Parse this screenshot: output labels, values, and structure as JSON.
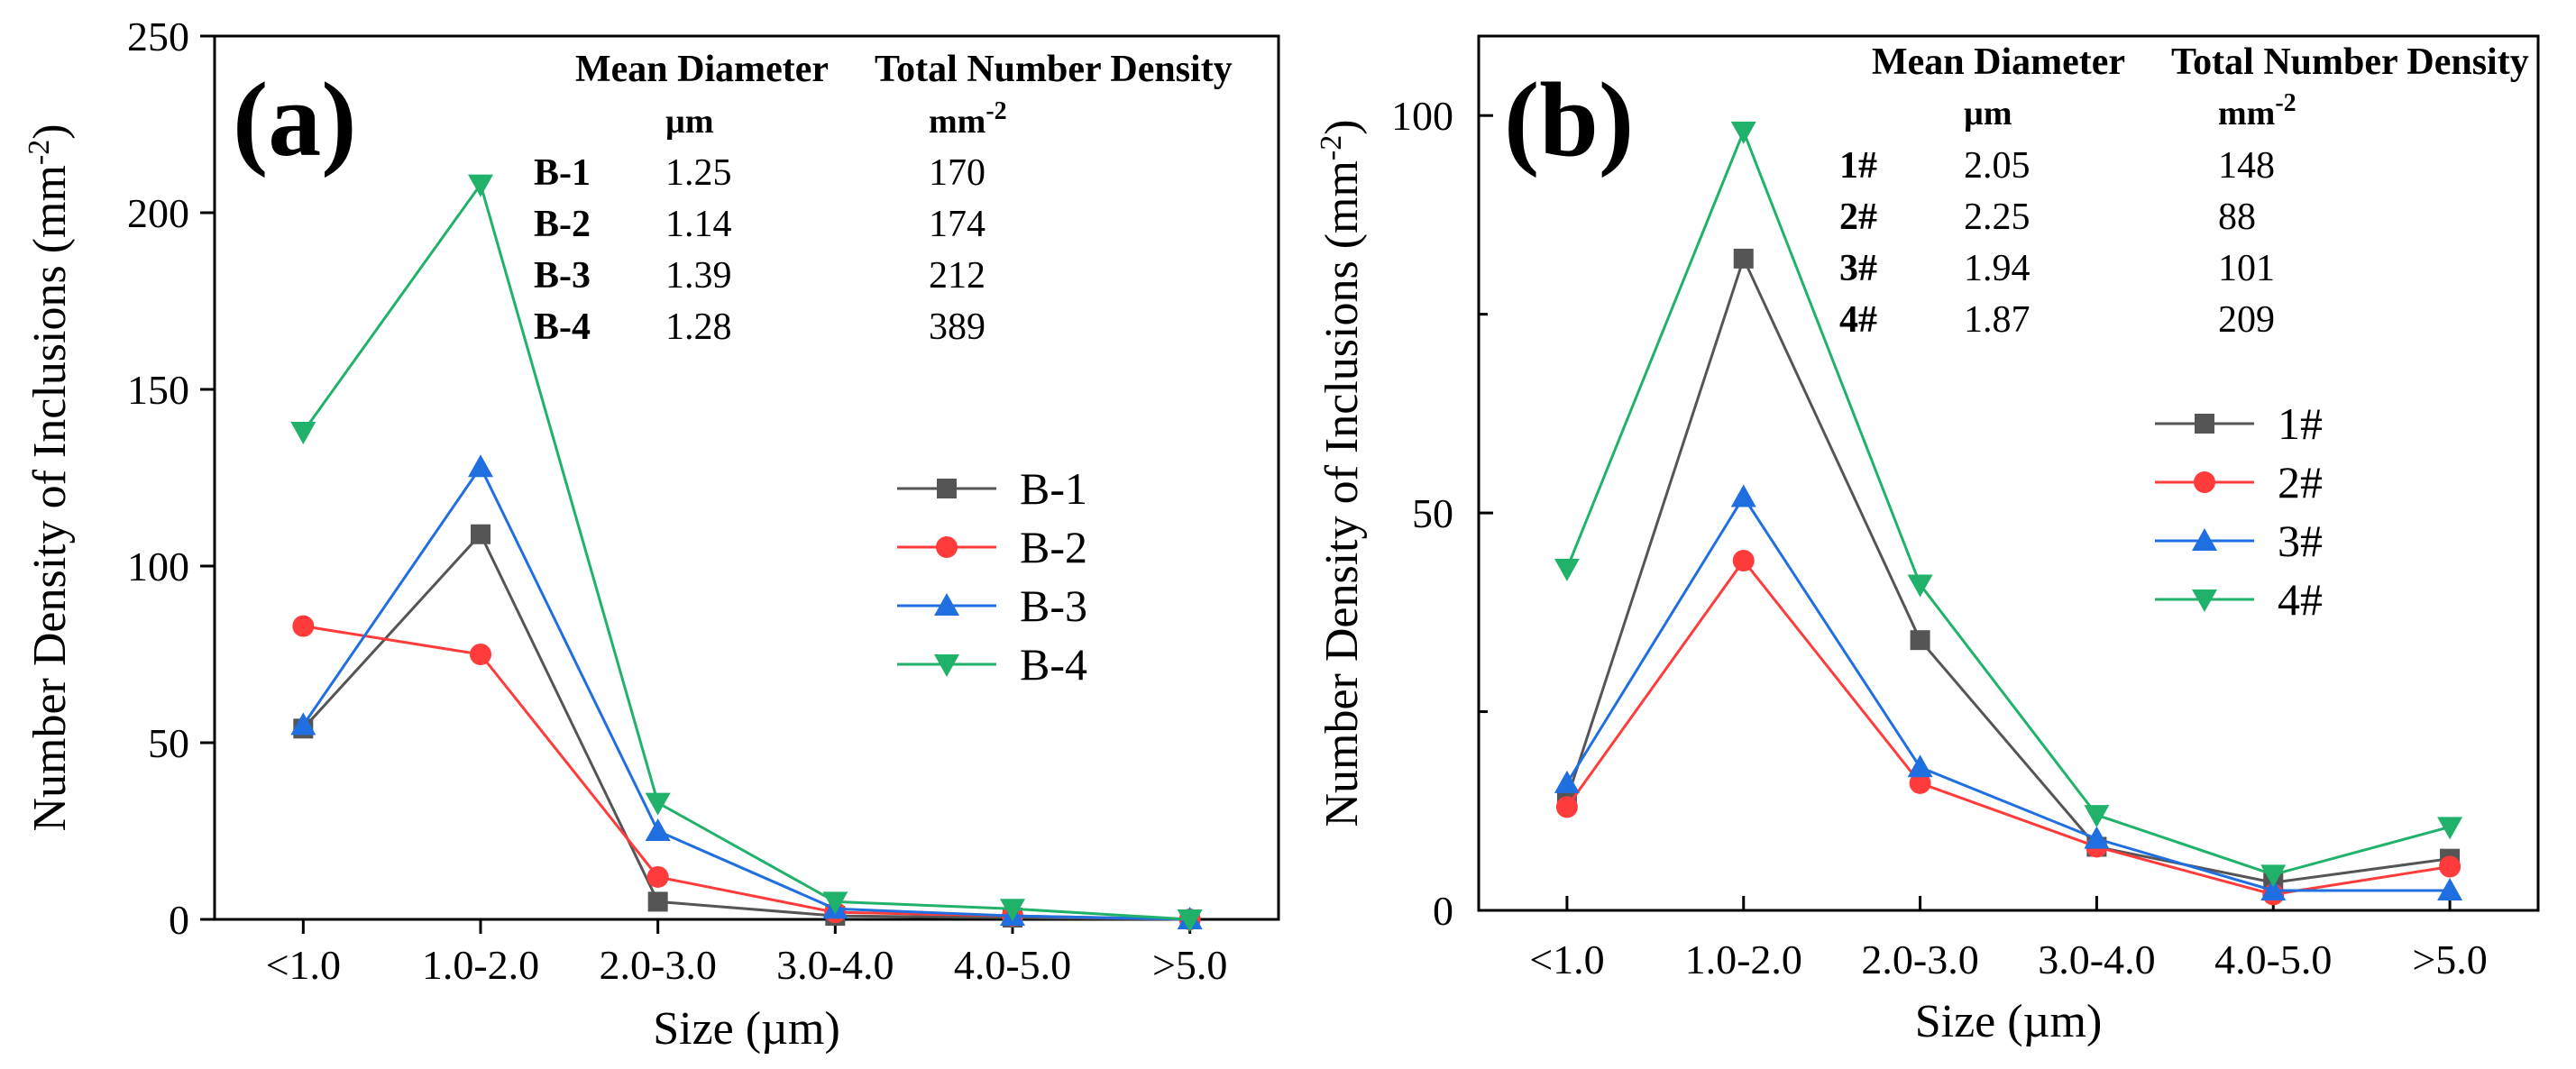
{
  "chart_data": [
    {
      "type": "line",
      "panel_label": "(a)",
      "xlabel": "Size (µm)",
      "ylabel": "Number Density of Inclusions (mm",
      "ylabel_sup": "-2",
      "ylabel_end": ")",
      "ylim": [
        0,
        250
      ],
      "y_ticks": [
        "0",
        "50",
        "100",
        "150",
        "200",
        "250"
      ],
      "y_tick_values": [
        0,
        50,
        100,
        150,
        200,
        250
      ],
      "categories": [
        "<1.0",
        "1.0-2.0",
        "2.0-3.0",
        "3.0-4.0",
        "4.0-5.0",
        ">5.0"
      ],
      "series": [
        {
          "name": "B-1",
          "color": "#555555",
          "marker": "square",
          "values": [
            54,
            109,
            5,
            1,
            0.5,
            0
          ]
        },
        {
          "name": "B-2",
          "color": "#ff3b3b",
          "marker": "circle",
          "values": [
            83,
            75,
            12,
            2,
            1,
            0
          ]
        },
        {
          "name": "B-3",
          "color": "#1f6fe0",
          "marker": "triangle-up",
          "values": [
            55,
            128,
            25,
            3,
            1,
            0
          ]
        },
        {
          "name": "B-4",
          "color": "#20b26b",
          "marker": "triangle-down",
          "values": [
            138,
            208,
            33,
            5,
            3,
            0
          ]
        }
      ],
      "legend_position": "center-right",
      "table": {
        "header1": "Mean Diameter",
        "header2": "Total Number Density",
        "unit1": "µm",
        "unit2": "mm",
        "unit2_sup": "-2",
        "rows": [
          {
            "label": "B-1",
            "diameter": "1.25",
            "density": "170"
          },
          {
            "label": "B-2",
            "diameter": "1.14",
            "density": "174"
          },
          {
            "label": "B-3",
            "diameter": "1.39",
            "density": "212"
          },
          {
            "label": "B-4",
            "diameter": "1.28",
            "density": "389"
          }
        ]
      }
    },
    {
      "type": "line",
      "panel_label": "(b)",
      "xlabel": "Size (µm)",
      "ylabel": "Number Density of Inclusions (mm",
      "ylabel_sup": "-2",
      "ylabel_end": ")",
      "ylim": [
        0,
        110
      ],
      "y_ticks": [
        "0",
        "50",
        "100"
      ],
      "y_tick_values": [
        0,
        50,
        100
      ],
      "y_minor_ticks": [
        25,
        75
      ],
      "categories": [
        "<1.0",
        "1.0-2.0",
        "2.0-3.0",
        "3.0-4.0",
        "4.0-5.0",
        ">5.0"
      ],
      "series": [
        {
          "name": "1#",
          "color": "#555555",
          "marker": "square",
          "values": [
            14,
            82,
            34,
            8,
            3.5,
            6.5
          ]
        },
        {
          "name": "2#",
          "color": "#ff3b3b",
          "marker": "circle",
          "values": [
            13,
            44,
            16,
            8,
            2,
            5.5
          ]
        },
        {
          "name": "3#",
          "color": "#1f6fe0",
          "marker": "triangle-up",
          "values": [
            16,
            52,
            18,
            9,
            2.5,
            2.5
          ]
        },
        {
          "name": "4#",
          "color": "#20b26b",
          "marker": "triangle-down",
          "values": [
            43,
            98,
            41,
            12,
            4.5,
            10.5
          ]
        }
      ],
      "legend_position": "center-right",
      "table": {
        "header1": "Mean Diameter",
        "header2": "Total Number Density",
        "unit1": "µm",
        "unit2": "mm",
        "unit2_sup": "-2",
        "rows": [
          {
            "label": "1#",
            "diameter": "2.05",
            "density": "148"
          },
          {
            "label": "2#",
            "diameter": "2.25",
            "density": "88"
          },
          {
            "label": "3#",
            "diameter": "1.94",
            "density": "101"
          },
          {
            "label": "4#",
            "diameter": "1.87",
            "density": "209"
          }
        ]
      }
    }
  ]
}
